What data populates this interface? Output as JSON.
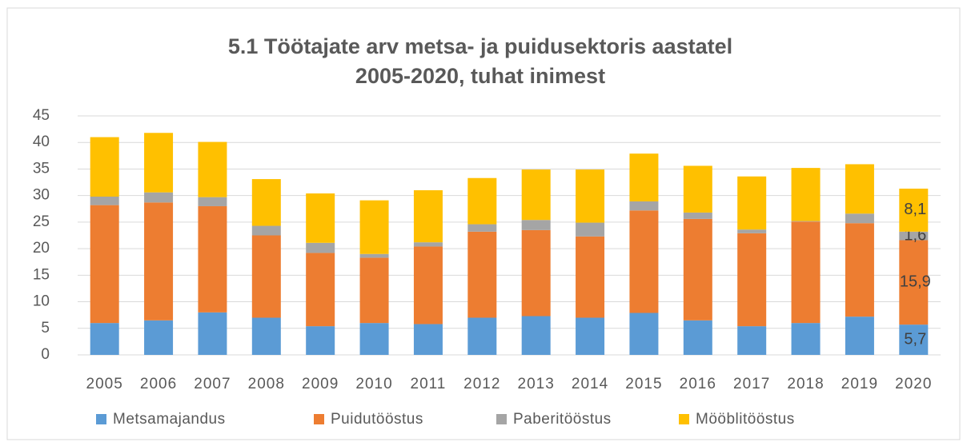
{
  "chart_data": {
    "type": "stacked_bar",
    "title": "5.1 Töötajate arv metsa- ja puidusektoris aastatel",
    "subtitle": "2005-2020, tuhat inimest",
    "categories": [
      "2005",
      "2006",
      "2007",
      "2008",
      "2009",
      "2010",
      "2011",
      "2012",
      "2013",
      "2014",
      "2015",
      "2016",
      "2017",
      "2018",
      "2019",
      "2020"
    ],
    "series": [
      {
        "name": "Metsamajandus",
        "color": "#5b9bd5",
        "values": [
          6.0,
          6.5,
          8.0,
          7.0,
          5.4,
          6.0,
          5.8,
          7.0,
          7.3,
          7.0,
          7.9,
          6.5,
          5.4,
          6.0,
          7.2,
          5.7
        ],
        "value_labels": [
          null,
          null,
          null,
          null,
          null,
          null,
          null,
          null,
          null,
          null,
          null,
          null,
          null,
          null,
          null,
          "5,7"
        ]
      },
      {
        "name": "Puidutööstus",
        "color": "#ed7d31",
        "values": [
          22.2,
          22.2,
          20.0,
          15.5,
          13.8,
          12.3,
          14.6,
          16.2,
          16.2,
          15.3,
          19.3,
          19.1,
          17.5,
          19.1,
          17.6,
          15.9
        ],
        "value_labels": [
          null,
          null,
          null,
          null,
          null,
          null,
          null,
          null,
          null,
          null,
          null,
          null,
          null,
          null,
          null,
          "15,9"
        ]
      },
      {
        "name": "Paberitööstus",
        "color": "#a5a5a5",
        "values": [
          1.6,
          1.9,
          1.7,
          1.8,
          1.9,
          0.7,
          0.8,
          1.4,
          1.9,
          2.6,
          1.7,
          1.2,
          0.7,
          0.1,
          1.8,
          1.6
        ],
        "value_labels": [
          null,
          null,
          null,
          null,
          null,
          null,
          null,
          null,
          null,
          null,
          null,
          null,
          null,
          null,
          null,
          "1,6"
        ]
      },
      {
        "name": "Mööblitööstus",
        "color": "#ffc000",
        "values": [
          11.2,
          11.2,
          10.4,
          8.8,
          9.3,
          10.1,
          9.8,
          8.7,
          9.5,
          10.0,
          9.0,
          8.8,
          10.0,
          10.0,
          9.3,
          8.1
        ],
        "value_labels": [
          null,
          null,
          null,
          null,
          null,
          null,
          null,
          null,
          null,
          null,
          null,
          null,
          null,
          null,
          null,
          "8,1"
        ]
      }
    ],
    "ylim": [
      0,
      45
    ],
    "yticks": [
      0,
      5,
      10,
      15,
      20,
      25,
      30,
      35,
      40,
      45
    ],
    "grid": true,
    "legend": "bottom"
  }
}
